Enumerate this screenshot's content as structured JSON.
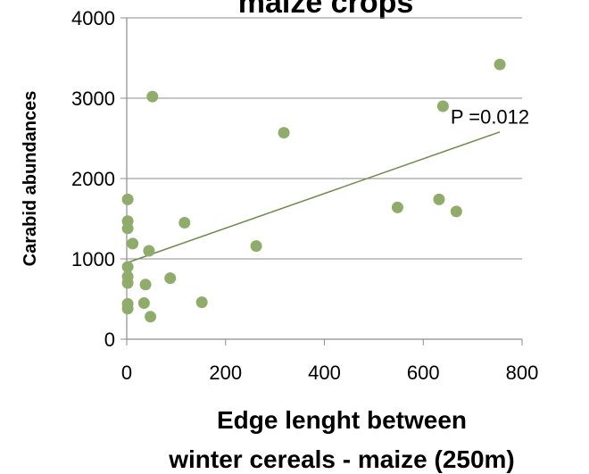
{
  "chart_data": {
    "type": "scatter",
    "title": "maize crops",
    "xlabel_lines": [
      "Edge lenght between",
      "winter cereals - maize (250m)"
    ],
    "ylabel": "Carabid abundances",
    "xlim": [
      0,
      800
    ],
    "ylim": [
      0,
      4000
    ],
    "xticks": [
      0,
      200,
      400,
      600,
      800
    ],
    "yticks": [
      0,
      1000,
      2000,
      3000,
      4000
    ],
    "grid": "horizontal",
    "point_color": "#8fac6b",
    "trendline_color": "#6e8b4e",
    "points": [
      {
        "x": 2,
        "y": 1740
      },
      {
        "x": 2,
        "y": 1470
      },
      {
        "x": 2,
        "y": 1380
      },
      {
        "x": 2,
        "y": 900
      },
      {
        "x": 2,
        "y": 780
      },
      {
        "x": 2,
        "y": 700
      },
      {
        "x": 2,
        "y": 440
      },
      {
        "x": 2,
        "y": 380
      },
      {
        "x": 12,
        "y": 1190
      },
      {
        "x": 38,
        "y": 680
      },
      {
        "x": 35,
        "y": 450
      },
      {
        "x": 45,
        "y": 1100
      },
      {
        "x": 48,
        "y": 280
      },
      {
        "x": 52,
        "y": 3020
      },
      {
        "x": 88,
        "y": 760
      },
      {
        "x": 117,
        "y": 1450
      },
      {
        "x": 152,
        "y": 460
      },
      {
        "x": 262,
        "y": 1160
      },
      {
        "x": 318,
        "y": 2570
      },
      {
        "x": 548,
        "y": 1640
      },
      {
        "x": 632,
        "y": 1740
      },
      {
        "x": 640,
        "y": 2900
      },
      {
        "x": 667,
        "y": 1590
      },
      {
        "x": 755,
        "y": 3420
      }
    ],
    "trendline": {
      "x": [
        0,
        755
      ],
      "y": [
        950,
        2580
      ]
    },
    "annotation": {
      "text": "P =0.012",
      "x": 735,
      "y": 2770
    }
  }
}
